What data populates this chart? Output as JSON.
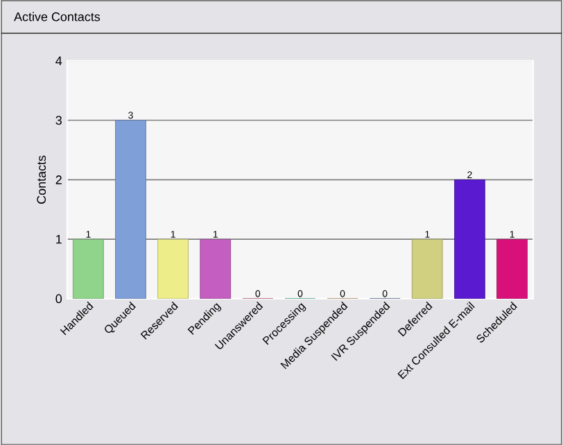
{
  "chart_data": {
    "type": "bar",
    "title": "Active Contacts",
    "ylabel": "Contacts",
    "categories": [
      "Handled",
      "Queued",
      "Reserved",
      "Pending",
      "Unanswered",
      "Processing",
      "Media Suspended",
      "IVR Suspended",
      "Deferred",
      "Ext Consulted E-mail",
      "Scheduled"
    ],
    "values": [
      1,
      3,
      1,
      1,
      0,
      0,
      0,
      0,
      1,
      2,
      1
    ],
    "colors": [
      "#8fd48a",
      "#7f9fd8",
      "#eded8a",
      "#c45ec0",
      "#e06080",
      "#40d0a0",
      "#d8a860",
      "#5070a0",
      "#d0d080",
      "#5a1ad0",
      "#d8107a"
    ],
    "ylim": [
      0,
      4
    ],
    "yticks": [
      0,
      1,
      2,
      3,
      4
    ],
    "grid": "y",
    "data_labels": true
  }
}
